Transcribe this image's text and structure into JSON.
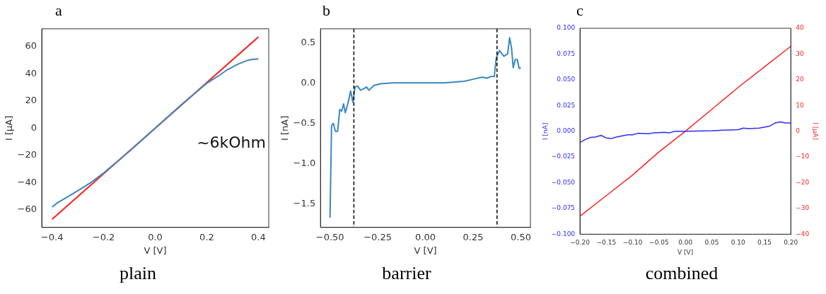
{
  "chart_data": [
    {
      "type": "line",
      "title": "a",
      "subtitle": "plain",
      "xlabel": "V [V]",
      "ylabel": "I [μA]",
      "annotations": [
        "~6kOhm"
      ],
      "grid": false,
      "legend": false,
      "marker": "none",
      "xlim": [
        -0.44,
        0.44
      ],
      "ylim": [
        -73,
        73
      ],
      "xticks": [
        {
          "value": -0.4,
          "label": "−0.4"
        },
        {
          "value": -0.2,
          "label": "−0.2"
        },
        {
          "value": 0,
          "label": "0.0"
        },
        0.2,
        0.4
      ],
      "yticks": [
        {
          "value": -60,
          "label": "−60"
        },
        {
          "value": -40,
          "label": "−40"
        },
        {
          "value": -20,
          "label": "−20"
        },
        0,
        20,
        40,
        60
      ],
      "series": [
        {
          "color": "#3a87c0",
          "line_style": "solid",
          "x": [
            -0.4,
            -0.38,
            -0.3,
            -0.25,
            -0.2,
            -0.1,
            0,
            0.1,
            0.2,
            0.25,
            0.28,
            0.32,
            0.36,
            0.38,
            0.4
          ],
          "values": [
            -58,
            -55,
            -46,
            -40,
            -33,
            -17,
            0,
            17,
            33,
            39,
            43,
            47,
            50,
            50.5,
            51
          ]
        },
        {
          "color": "#ff1a1a",
          "line_style": "solid",
          "x": [
            -0.4,
            0.4
          ],
          "values": [
            -67,
            67
          ]
        }
      ]
    },
    {
      "type": "line",
      "title": "b",
      "subtitle": "barrier",
      "xlabel": "V [V]",
      "ylabel": "I [nA]",
      "grid": false,
      "legend": false,
      "marker": "none",
      "xlim": [
        -0.55,
        0.55
      ],
      "ylim": [
        -1.79,
        0.67
      ],
      "xticks": [
        {
          "value": -0.5,
          "label": "−0.50"
        },
        {
          "value": -0.25,
          "label": "−0.25"
        },
        {
          "value": 0,
          "label": "0.00"
        },
        0.25,
        {
          "value": 0.5,
          "label": "0.50"
        }
      ],
      "yticks": [
        {
          "value": -1.5,
          "label": "−1.5"
        },
        {
          "value": -1,
          "label": "−1.0"
        },
        {
          "value": -0.5,
          "label": "−0.5"
        },
        {
          "value": 0,
          "label": "0.0"
        },
        0.5
      ],
      "ref_lines": [
        {
          "axis": "x",
          "value": -0.375,
          "color": "#000000",
          "line_style": "dashed"
        },
        {
          "axis": "x",
          "value": 0.375,
          "color": "#000000",
          "line_style": "dashed"
        }
      ],
      "series": [
        {
          "color": "#3a87c0",
          "line_style": "solid",
          "x": [
            -0.5,
            -0.492,
            -0.483,
            -0.472,
            -0.46,
            -0.449,
            -0.439,
            -0.429,
            -0.42,
            -0.407,
            -0.392,
            -0.38,
            -0.369,
            -0.356,
            -0.34,
            -0.323,
            -0.309,
            -0.296,
            -0.269,
            -0.236,
            -0.169,
            -0.036,
            0.097,
            0.204,
            0.257,
            0.297,
            0.324,
            0.344,
            0.361,
            0.371,
            0.388,
            0.411,
            0.431,
            0.441,
            0.451,
            0.46,
            0.471,
            0.481,
            0.491,
            0.5
          ],
          "values": [
            -1.67,
            -0.53,
            -0.5,
            -0.6,
            -0.6,
            -0.33,
            -0.35,
            -0.26,
            -0.37,
            -0.26,
            -0.1,
            -0.24,
            -0.05,
            -0.04,
            -0.09,
            -0.07,
            -0.05,
            -0.09,
            -0.03,
            -0.01,
            0,
            0,
            0,
            0.02,
            0.05,
            0.07,
            0.06,
            0.08,
            0.08,
            0.31,
            0.4,
            0.33,
            0.36,
            0.56,
            0.44,
            0.19,
            0.29,
            0.29,
            0.18,
            0.19
          ]
        }
      ]
    },
    {
      "type": "line",
      "title": "c",
      "subtitle": "combined",
      "xlabel": "V [V]",
      "ylabel": "I [nA]",
      "y2label": "I [μA]",
      "grid": false,
      "legend": false,
      "marker": "none",
      "xlim": [
        -0.2,
        0.2
      ],
      "ylim": [
        -0.1,
        0.1
      ],
      "y2lim": [
        -40,
        40
      ],
      "xticks": [
        {
          "value": -0.2,
          "label": "−0.20"
        },
        {
          "value": -0.15,
          "label": "−0.15"
        },
        {
          "value": -0.1,
          "label": "−0.10"
        },
        {
          "value": -0.05,
          "label": "−0.05"
        },
        {
          "value": 0,
          "label": "0.00"
        },
        0.05,
        {
          "value": 0.1,
          "label": "0.10"
        },
        0.15,
        {
          "value": 0.2,
          "label": "0.20"
        }
      ],
      "yticks": [
        {
          "value": -0.1,
          "label": "−0.100"
        },
        {
          "value": -0.075,
          "label": "−0.075"
        },
        {
          "value": -0.05,
          "label": "−0.050"
        },
        {
          "value": -0.025,
          "label": "−0.025"
        },
        {
          "value": 0,
          "label": "0.000"
        },
        0.025,
        {
          "value": 0.05,
          "label": "0.050"
        },
        0.075,
        {
          "value": 0.1,
          "label": "0.100"
        }
      ],
      "y2ticks": [
        {
          "value": -40,
          "label": "−40"
        },
        {
          "value": -30,
          "label": "−30"
        },
        {
          "value": -20,
          "label": "−20"
        },
        {
          "value": -10,
          "label": "−10"
        },
        0,
        10,
        20,
        30,
        40
      ],
      "series": [
        {
          "color": "#2b2bff",
          "line_style": "solid",
          "axis": "y",
          "x": [
            -0.2,
            -0.19,
            -0.18,
            -0.17,
            -0.16,
            -0.15,
            -0.14,
            -0.13,
            -0.12,
            -0.11,
            -0.1,
            -0.09,
            -0.07,
            -0.06,
            -0.04,
            -0.03,
            -0.02,
            0,
            0.05,
            0.07,
            0.1,
            0.11,
            0.12,
            0.14,
            0.16,
            0.17,
            0.18,
            0.19,
            0.2
          ],
          "values": [
            -0.011,
            -0.008,
            -0.006,
            -0.0055,
            -0.004,
            -0.0065,
            -0.007,
            -0.0055,
            -0.0045,
            -0.0035,
            -0.0035,
            -0.002,
            -0.0025,
            -0.0015,
            -0.001,
            -0.0015,
            0,
            0,
            0.0005,
            0.001,
            0.0015,
            0.003,
            0.0025,
            0.003,
            0.005,
            0.008,
            0.009,
            0.008,
            0.008
          ]
        },
        {
          "color": "#ff2020",
          "line_style": "solid",
          "axis": "y2",
          "x": [
            -0.2,
            -0.15,
            -0.1,
            -0.05,
            0,
            0.05,
            0.1,
            0.15,
            0.2
          ],
          "values": [
            -33,
            -25,
            -17,
            -8,
            0,
            8.5,
            17,
            25,
            33
          ]
        }
      ]
    }
  ]
}
